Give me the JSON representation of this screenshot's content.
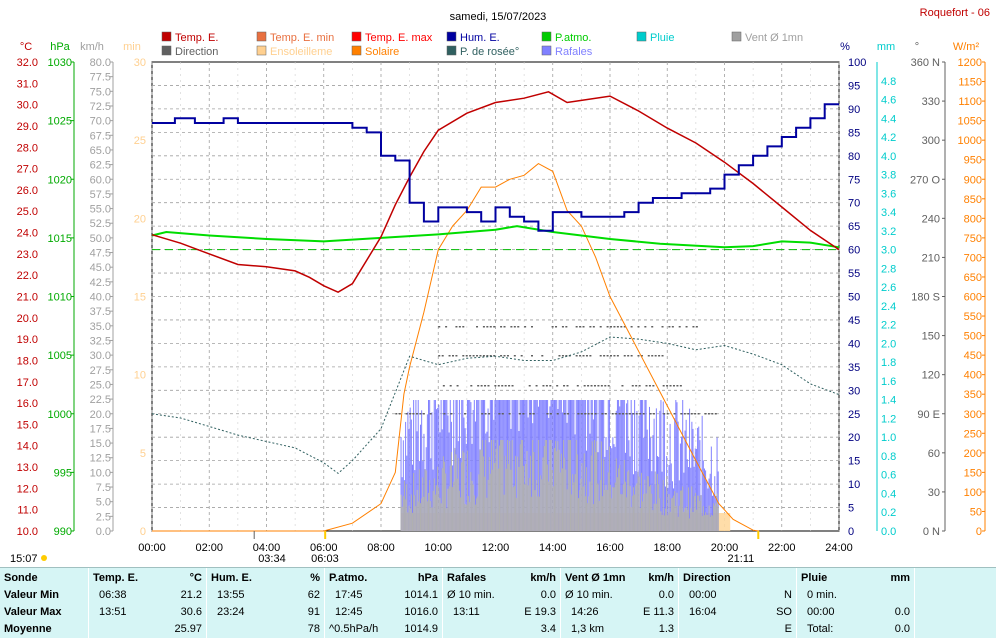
{
  "title": "samedi, 15/07/2023",
  "station": "Roquefort - 06",
  "legend": [
    {
      "label": "Temp. E.",
      "color": "#c00000"
    },
    {
      "label": "Temp. E. min",
      "color": "#e87040"
    },
    {
      "label": "Temp. E. max",
      "color": "#ff0000"
    },
    {
      "label": "Hum. E.",
      "color": "#0000a0"
    },
    {
      "label": "P.atmo.",
      "color": "#00cc00"
    },
    {
      "label": "Pluie",
      "color": "#00cccc"
    },
    {
      "label": "Vent Ø 1mn",
      "color": "#a0a0a0"
    },
    {
      "label": "Direction",
      "color": "#606060"
    },
    {
      "label": "Ensoleilleme",
      "color": "#ffd090"
    },
    {
      "label": "Solaire",
      "color": "#ff8000"
    },
    {
      "label": "P. de rosée°",
      "color": "#306060"
    },
    {
      "label": "Rafales",
      "color": "#8080ff"
    }
  ],
  "axis_units": {
    "temp": "°C",
    "pressure": "hPa",
    "wind": "km/h",
    "min": "min",
    "pct": "%",
    "rain": "mm",
    "dir": "°",
    "solar": "W/m²"
  },
  "chart_data": {
    "type": "line",
    "x_ticks": [
      "00:00",
      "02:00",
      "04:00",
      "06:00",
      "08:00",
      "10:00",
      "12:00",
      "14:00",
      "16:00",
      "18:00",
      "20:00",
      "22:00",
      "24:00"
    ],
    "temp_ticks": [
      "32.0",
      "31.0",
      "30.0",
      "29.0",
      "28.0",
      "27.0",
      "26.0",
      "25.0",
      "24.0",
      "23.0",
      "22.0",
      "21.0",
      "20.0",
      "19.0",
      "18.0",
      "17.0",
      "16.0",
      "15.0",
      "14.0",
      "13.0",
      "12.0",
      "11.0",
      "10.0"
    ],
    "pressure_ticks": [
      "1030",
      "1025",
      "1020",
      "1015",
      "1010",
      "1005",
      "1000",
      "995",
      "990"
    ],
    "wind_ticks": [
      "80.0",
      "77.5",
      "75.0",
      "72.5",
      "70.0",
      "67.5",
      "65.0",
      "62.5",
      "60.0",
      "57.5",
      "55.0",
      "52.5",
      "50.0",
      "47.5",
      "45.0",
      "42.5",
      "40.0",
      "37.5",
      "35.0",
      "32.5",
      "30.0",
      "27.5",
      "25.0",
      "22.5",
      "20.0",
      "17.5",
      "15.0",
      "12.5",
      "10.0",
      "7.5",
      "5.0",
      "2.5",
      "0.0"
    ],
    "min_ticks": [
      "30",
      "25",
      "20",
      "15",
      "10",
      "5",
      "0"
    ],
    "pct_ticks": [
      "100",
      "95",
      "90",
      "85",
      "80",
      "75",
      "70",
      "65",
      "60",
      "55",
      "50",
      "45",
      "40",
      "35",
      "30",
      "25",
      "20",
      "15",
      "10",
      "5",
      "0"
    ],
    "rain_ticks": [
      "4.8",
      "4.6",
      "4.4",
      "4.2",
      "4.0",
      "3.8",
      "3.6",
      "3.4",
      "3.2",
      "3.0",
      "2.8",
      "2.6",
      "2.4",
      "2.2",
      "2.0",
      "1.8",
      "1.6",
      "1.4",
      "1.2",
      "1.0",
      "0.8",
      "0.6",
      "0.4",
      "0.2",
      "0.0"
    ],
    "dir_ticks": [
      "360 N",
      "330",
      "300",
      "270 O",
      "240",
      "210",
      "180 S",
      "150",
      "120",
      "90 E",
      "60",
      "30",
      "0 N"
    ],
    "solar_ticks": [
      "1200",
      "1150",
      "1100",
      "1050",
      "1000",
      "950",
      "900",
      "850",
      "800",
      "750",
      "700",
      "650",
      "600",
      "550",
      "500",
      "450",
      "400",
      "350",
      "300",
      "250",
      "200",
      "150",
      "100",
      "50",
      "0"
    ],
    "temp_series": {
      "name": "Temp. E.",
      "hours": [
        0,
        1,
        2,
        3,
        4,
        5,
        5.5,
        6,
        6.5,
        7,
        8,
        8.5,
        9,
        9.5,
        10,
        11,
        12,
        13,
        13.85,
        14.5,
        15,
        16,
        17,
        18,
        19,
        20,
        21,
        22,
        23,
        24
      ],
      "values": [
        23.9,
        23.5,
        23.0,
        22.5,
        22.4,
        22.2,
        21.9,
        21.5,
        21.2,
        21.6,
        23.8,
        25.3,
        26.6,
        27.8,
        28.8,
        29.6,
        30.1,
        30.3,
        30.6,
        30.1,
        30.2,
        30.4,
        29.7,
        28.9,
        28.2,
        27.3,
        26.3,
        25.2,
        24.1,
        23.2
      ]
    },
    "humidity_series": {
      "name": "Hum. E.",
      "hours": [
        0,
        0.8,
        1.5,
        2.5,
        3,
        4,
        5,
        6,
        7,
        7.5,
        8,
        8.5,
        9,
        9.5,
        10,
        10.5,
        11,
        11.5,
        12,
        12.5,
        13,
        13.5,
        14,
        14.5,
        15,
        15.5,
        16,
        16.5,
        17,
        17.5,
        18,
        18.5,
        19,
        19.5,
        20,
        20.5,
        21,
        21.5,
        22,
        22.5,
        23,
        23.5,
        24
      ],
      "values": [
        87,
        88,
        87,
        88,
        87,
        87,
        87,
        87,
        86,
        85,
        80,
        79,
        70,
        66,
        69,
        69,
        68,
        66,
        69,
        67,
        66,
        64,
        68,
        68,
        67,
        67,
        67,
        68,
        70,
        71,
        71,
        72,
        72,
        73,
        76,
        78,
        80,
        82,
        84,
        86,
        88,
        91,
        91
      ]
    },
    "pressure_series": {
      "name": "P.atmo.",
      "hours": [
        0,
        0.5,
        2,
        4,
        6,
        8,
        10,
        12,
        12.75,
        14,
        16,
        17.75,
        20,
        21,
        22,
        23,
        24
      ],
      "values": [
        1015.2,
        1015.5,
        1015.2,
        1014.9,
        1014.7,
        1015.0,
        1015.3,
        1015.7,
        1016.0,
        1015.5,
        1014.9,
        1014.5,
        1014.2,
        1014.3,
        1014.7,
        1014.6,
        1014.2
      ]
    },
    "dewpoint_series": {
      "name": "P. de rosée°",
      "hours": [
        0,
        1,
        2,
        3,
        4,
        5,
        6,
        6.5,
        7,
        8,
        9,
        9.5,
        10,
        11,
        12,
        13,
        14,
        15,
        16,
        17,
        18,
        19,
        20,
        21,
        22,
        23,
        24
      ],
      "values": [
        15.5,
        15.3,
        14.9,
        14.5,
        14.2,
        13.9,
        13.2,
        12.7,
        13.3,
        14.8,
        18.2,
        18.0,
        17.8,
        18.1,
        18.2,
        18.0,
        18.0,
        18.4,
        19.1,
        19.0,
        18.8,
        18.5,
        18.7,
        18.3,
        17.8,
        16.9,
        16.4
      ]
    },
    "solar_series": {
      "name": "Solaire",
      "hours": [
        0,
        6,
        7,
        8,
        8.5,
        8.8,
        9,
        9.5,
        10,
        10.5,
        11,
        11.5,
        12,
        12.5,
        13,
        13.5,
        14,
        14.5,
        15,
        15.5,
        16,
        17,
        18,
        19,
        19.8,
        20.3,
        21,
        21.2
      ],
      "values": [
        0,
        0,
        20,
        70,
        150,
        350,
        420,
        560,
        720,
        780,
        820,
        880,
        880,
        900,
        910,
        940,
        920,
        820,
        780,
        700,
        600,
        460,
        320,
        180,
        70,
        30,
        2,
        0
      ]
    },
    "sunshine_hours": [
      8.7,
      20.2
    ],
    "sun_rise": "06:03",
    "sun_set": "21:11",
    "moon_label": "03:34",
    "time_label": "15:07",
    "reference_line_temp": 23.2
  },
  "footer": {
    "sonde": {
      "title": "Sonde",
      "rows": [
        "Valeur Min",
        "Valeur Max",
        "Moyenne"
      ]
    },
    "temp": {
      "title": "Temp. E.",
      "unit": "°C",
      "rows": [
        [
          "06:38",
          "21.2"
        ],
        [
          "13:51",
          "30.6"
        ],
        [
          "",
          "25.97"
        ]
      ]
    },
    "hum": {
      "title": "Hum. E.",
      "unit": "%",
      "rows": [
        [
          "13:55",
          "62"
        ],
        [
          "23:24",
          "91"
        ],
        [
          "",
          "78"
        ]
      ]
    },
    "patmo": {
      "title": "P.atmo.",
      "unit": "hPa",
      "rows": [
        [
          "17:45",
          "1014.1"
        ],
        [
          "12:45",
          "1016.0"
        ],
        [
          "^0.5hPa/h",
          "1014.9"
        ]
      ]
    },
    "rafales": {
      "title": "Rafales",
      "unit": "km/h",
      "rows": [
        [
          "Ø 10 min.",
          "0.0"
        ],
        [
          "13:11",
          "E 19.3"
        ],
        [
          "",
          "3.4"
        ]
      ]
    },
    "vent": {
      "title": "Vent Ø 1mn",
      "unit": "km/h",
      "rows": [
        [
          "Ø 10 min.",
          "0.0"
        ],
        [
          "14:26",
          "E 11.3"
        ],
        [
          "1,3 km",
          "1.3"
        ]
      ]
    },
    "direction": {
      "title": "Direction",
      "unit": "",
      "rows": [
        [
          "00:00",
          "N"
        ],
        [
          "16:04",
          "SO"
        ],
        [
          "",
          "E"
        ]
      ]
    },
    "pluie": {
      "title": "Pluie",
      "unit": "mm",
      "rows": [
        [
          "0 min.",
          ""
        ],
        [
          "00:00",
          "0.0"
        ],
        [
          "Total:",
          "0.0"
        ]
      ]
    }
  }
}
